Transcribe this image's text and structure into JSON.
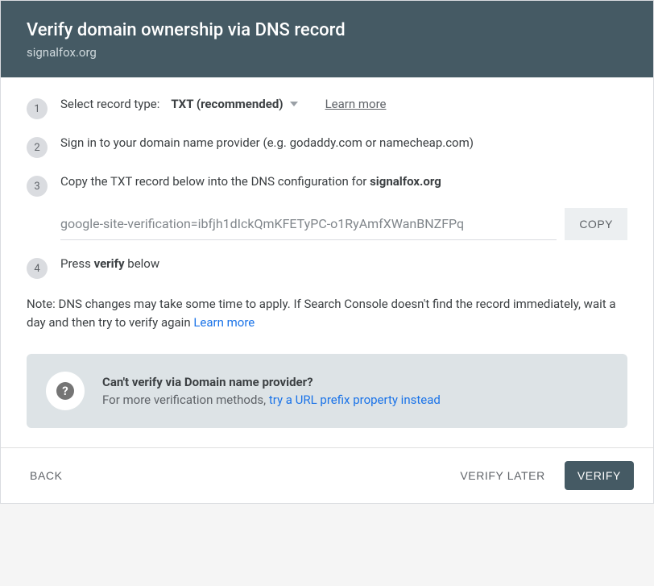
{
  "header": {
    "title": "Verify domain ownership via DNS record",
    "subtitle": "signalfox.org"
  },
  "steps": {
    "s1": {
      "num": "1",
      "label": "Select record type:",
      "select_value": "TXT (recommended)",
      "learn_more": "Learn more"
    },
    "s2": {
      "num": "2",
      "text": "Sign in to your domain name provider (e.g. godaddy.com or namecheap.com)"
    },
    "s3": {
      "num": "3",
      "prefix": "Copy the TXT record below into the DNS configuration for ",
      "domain": "signalfox.org",
      "txt_value": "google-site-verification=ibfjh1dIckQmKFETyPC-o1RyAmfXWanBNZFPq",
      "copy": "COPY"
    },
    "s4": {
      "num": "4",
      "prefix": "Press ",
      "bold": "verify",
      "suffix": " below"
    }
  },
  "note": {
    "text": "Note: DNS changes may take some time to apply. If Search Console doesn't find the record immediately, wait a day and then try to verify again ",
    "link": "Learn more"
  },
  "help": {
    "title": "Can't verify via Domain name provider?",
    "prefix": "For more verification methods, ",
    "link": "try a URL prefix property instead"
  },
  "footer": {
    "back": "BACK",
    "later": "VERIFY LATER",
    "verify": "VERIFY"
  }
}
